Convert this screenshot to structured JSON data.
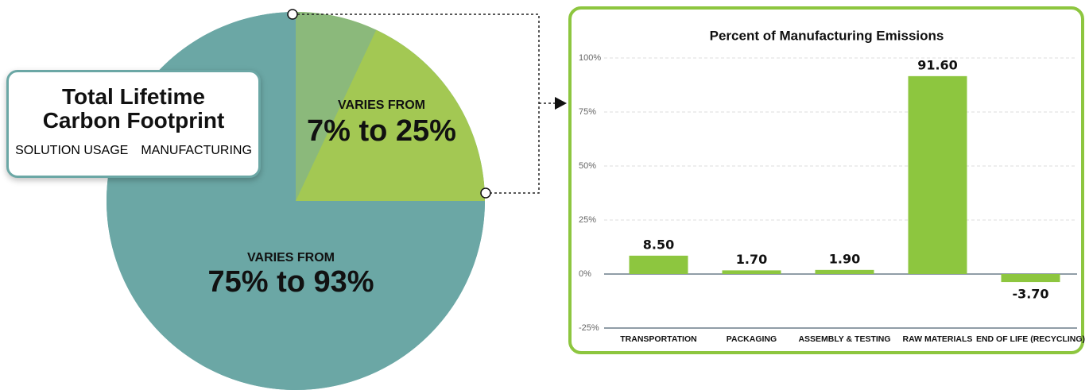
{
  "chart_data": [
    {
      "type": "pie",
      "title": "Total Lifetime Carbon Footprint",
      "slices": [
        {
          "name": "SOLUTION USAGE",
          "color": "#6ba7a5",
          "caption": "VARIES FROM",
          "label": "75% to 93%",
          "min": 75,
          "max": 93
        },
        {
          "name": "MANUFACTURING",
          "color": "#a3c853",
          "min_color": "#8bb97b",
          "caption": "VARIES FROM",
          "label": "7% to 25%",
          "min": 7,
          "max": 25
        }
      ]
    },
    {
      "type": "bar",
      "title": "Percent of Manufacturing Emissions",
      "categories": [
        "TRANSPORTATION",
        "PACKAGING",
        "ASSEMBLY & TESTING",
        "RAW MATERIALS",
        "END OF LIFE (RECYCLING)"
      ],
      "values": [
        8.5,
        1.7,
        1.9,
        91.6,
        -3.7
      ],
      "value_labels": [
        "8.50",
        "1.70",
        "1.90",
        "91.60",
        "-3.70"
      ],
      "color": "#8dc63f",
      "ylim": [
        -25,
        100
      ],
      "yticks": [
        {
          "value": -25,
          "label": "-25%"
        },
        {
          "value": 0,
          "label": "0%"
        },
        {
          "value": 25,
          "label": "25%"
        },
        {
          "value": 50,
          "label": "50%"
        },
        {
          "value": 75,
          "label": "75%"
        },
        {
          "value": 100,
          "label": "100%"
        }
      ],
      "grid": true
    }
  ]
}
